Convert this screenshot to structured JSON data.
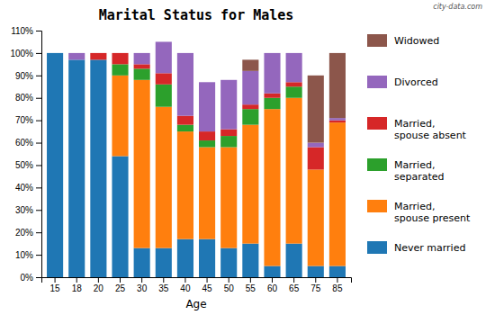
{
  "chart_data": {
    "type": "bar",
    "stacked": true,
    "grid": false,
    "legend": "right",
    "title": "Marital Status for Males",
    "xlabel": "Age",
    "annotations": [
      "city-data.com"
    ],
    "categories": [
      "15",
      "18",
      "20",
      "25",
      "30",
      "35",
      "40",
      "45",
      "50",
      "55",
      "60",
      "65",
      "75",
      "85"
    ],
    "series": [
      {
        "name": "Never married",
        "values": [
          100,
          97,
          97,
          54,
          13,
          13,
          17,
          17,
          13,
          15,
          5,
          15,
          5,
          5
        ]
      },
      {
        "name": "Married,\nspouse present",
        "values": [
          0,
          0,
          0,
          36,
          75,
          63,
          48,
          41,
          45,
          53,
          70,
          65,
          43,
          64
        ]
      },
      {
        "name": "Married,\nseparated",
        "values": [
          0,
          0,
          0,
          5,
          5,
          10,
          3,
          3,
          5,
          7,
          5,
          5,
          0,
          0
        ]
      },
      {
        "name": "Married,\nspouse absent",
        "values": [
          0,
          0,
          3,
          5,
          2,
          5,
          4,
          4,
          3,
          2,
          2,
          2,
          10,
          1
        ]
      },
      {
        "name": "Divorced",
        "values": [
          0,
          3,
          0,
          0,
          5,
          14,
          28,
          22,
          22,
          15,
          18,
          13,
          2,
          1
        ]
      },
      {
        "name": "Widowed",
        "values": [
          0,
          0,
          0,
          0,
          0,
          0,
          0,
          0,
          0,
          5,
          0,
          0,
          30,
          29
        ]
      }
    ],
    "ylim": [
      0,
      110
    ],
    "yticks": [
      {
        "value": 0,
        "label": "0%"
      },
      {
        "value": 10,
        "label": "10%"
      },
      {
        "value": 20,
        "label": "20%"
      },
      {
        "value": 30,
        "label": "30%"
      },
      {
        "value": 40,
        "label": "40%"
      },
      {
        "value": 50,
        "label": "50%"
      },
      {
        "value": 60,
        "label": "60%"
      },
      {
        "value": 70,
        "label": "70%"
      },
      {
        "value": 80,
        "label": "80%"
      },
      {
        "value": 90,
        "label": "90%"
      },
      {
        "value": 100,
        "label": "100%"
      },
      {
        "value": 110,
        "label": "110%"
      }
    ]
  }
}
